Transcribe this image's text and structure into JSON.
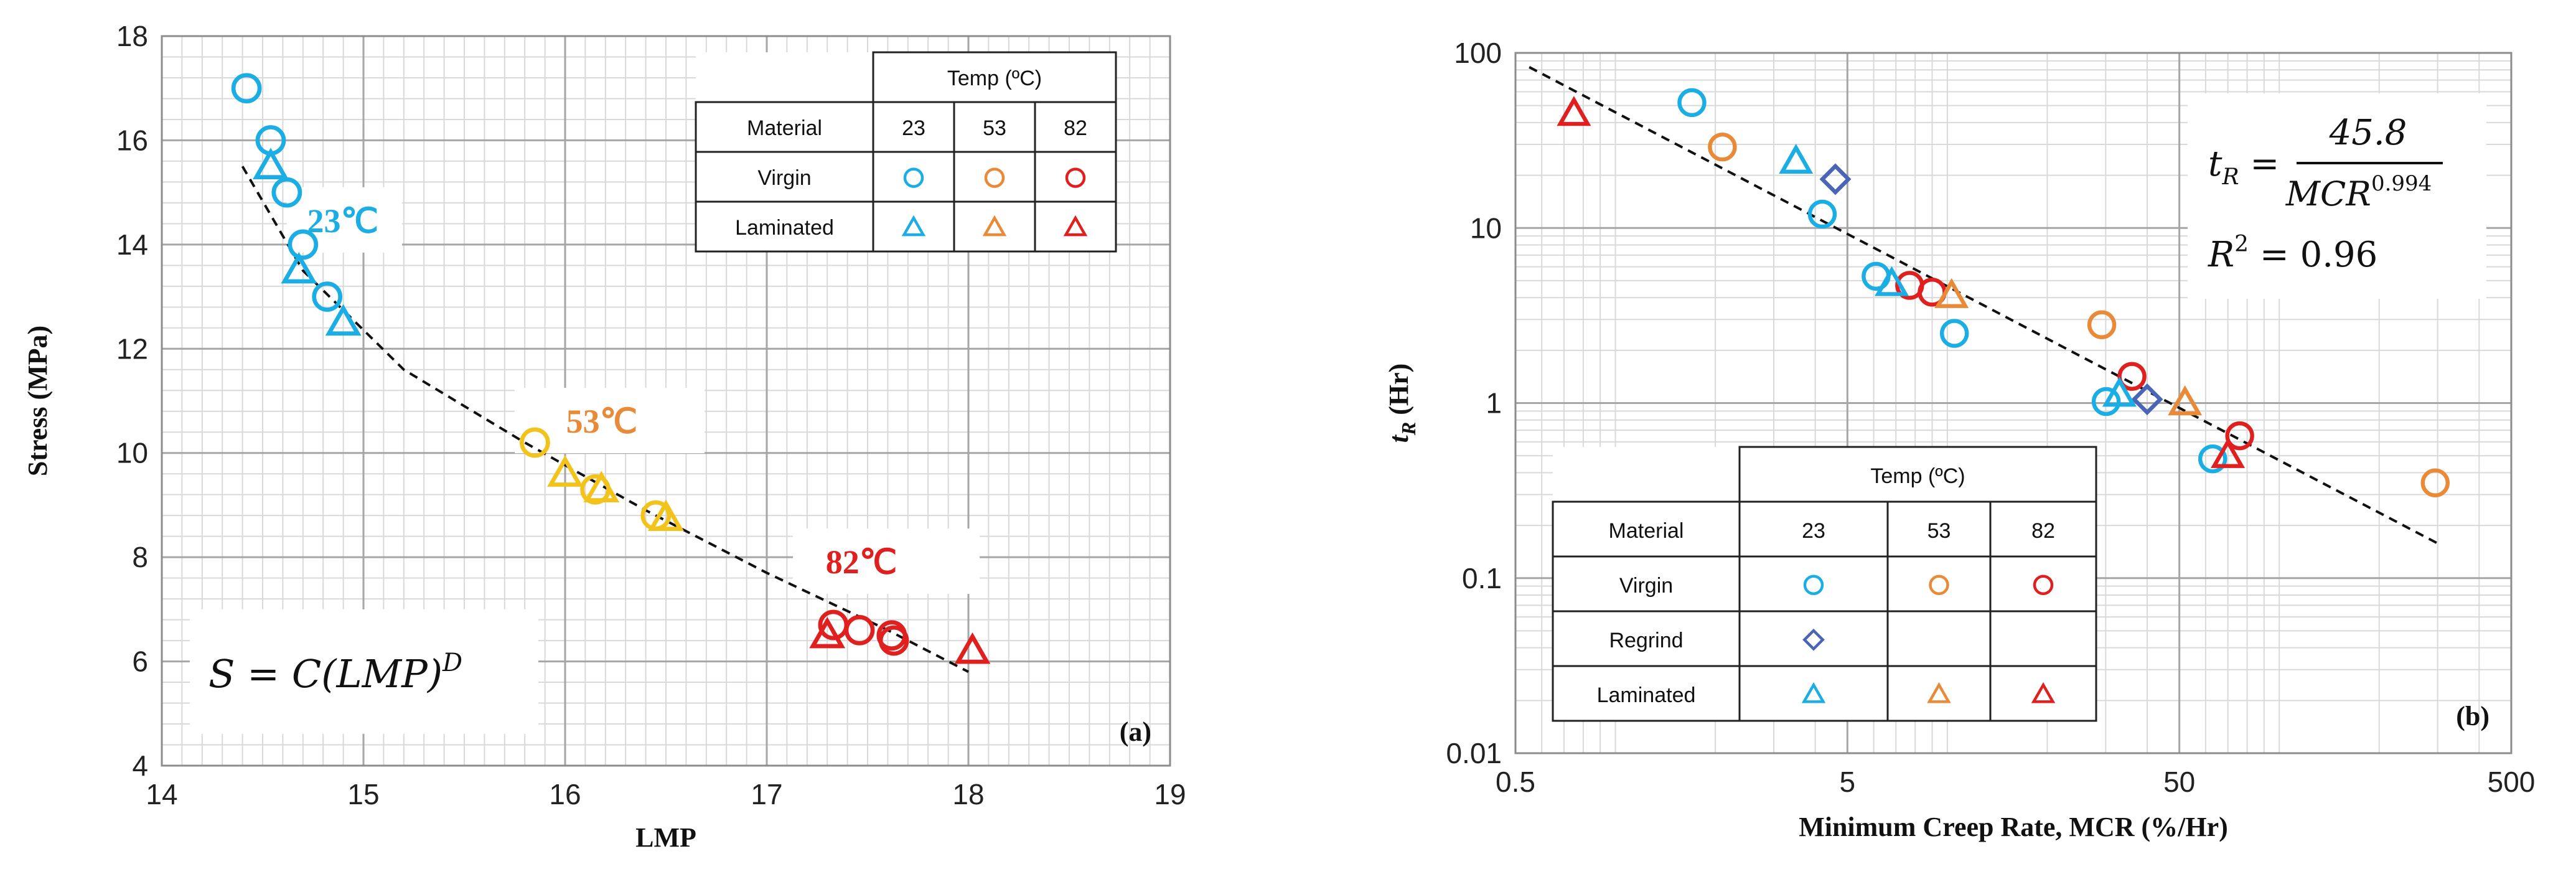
{
  "colors": {
    "c23": "#1aaee5",
    "c53": "#e98a38",
    "c53a": "#f2c31a",
    "c82": "#e01f1f",
    "regrind": "#4a65b5"
  },
  "chart_data": [
    {
      "type": "scatter",
      "panel_label": "(a)",
      "xlabel": "LMP",
      "ylabel": "Stress (MPa)",
      "xlim": [
        14,
        19
      ],
      "ylim": [
        4,
        18
      ],
      "xticks": [
        "14",
        "15",
        "16",
        "17",
        "18",
        "19"
      ],
      "yticks": [
        "4",
        "6",
        "8",
        "10",
        "12",
        "14",
        "16",
        "18"
      ],
      "annotations": {
        "t23": "23℃",
        "t53": "53℃",
        "t82": "82℃"
      },
      "equation": {
        "lhs": "S = C(LMP)",
        "exp": "D"
      },
      "fit_curve": [
        [
          14.4,
          15.5
        ],
        [
          14.7,
          13.5
        ],
        [
          15.2,
          11.6
        ],
        [
          15.8,
          10.2
        ],
        [
          16.4,
          8.9
        ],
        [
          17.0,
          7.7
        ],
        [
          17.6,
          6.6
        ],
        [
          18.0,
          5.8
        ]
      ],
      "series": [
        {
          "name": "Virgin 23",
          "marker": "circle",
          "color": "#1aaee5",
          "x": [
            14.42,
            14.54,
            14.62,
            14.7,
            14.82
          ],
          "y": [
            17,
            16,
            15,
            14,
            13
          ]
        },
        {
          "name": "Laminated 23",
          "marker": "triangle",
          "color": "#1aaee5",
          "x": [
            14.54,
            14.68,
            14.9
          ],
          "y": [
            15.5,
            13.5,
            12.5
          ]
        },
        {
          "name": "Virgin 53",
          "marker": "circle",
          "color": "#f2c31a",
          "x": [
            15.85,
            16.15,
            16.45
          ],
          "y": [
            10.2,
            9.3,
            8.8
          ]
        },
        {
          "name": "Laminated 53",
          "marker": "triangle",
          "color": "#f2c31a",
          "x": [
            16.0,
            16.18,
            16.5
          ],
          "y": [
            9.6,
            9.3,
            8.75
          ]
        },
        {
          "name": "Virgin 82",
          "marker": "circle",
          "color": "#e01f1f",
          "x": [
            17.33,
            17.46,
            17.62,
            17.63
          ],
          "y": [
            6.7,
            6.6,
            6.5,
            6.4
          ]
        },
        {
          "name": "Laminated 82",
          "marker": "triangle",
          "color": "#e01f1f",
          "x": [
            17.3,
            18.02
          ],
          "y": [
            6.5,
            6.2
          ]
        }
      ],
      "legend_table": {
        "title": "Temp (ºC)",
        "header": [
          "Material",
          "23",
          "53",
          "82"
        ],
        "rows": [
          {
            "label": "Virgin",
            "markers": [
              "circle",
              "circle",
              "circle"
            ],
            "colors": [
              "#1aaee5",
              "#e98a38",
              "#e01f1f"
            ]
          },
          {
            "label": "Laminated",
            "markers": [
              "triangle",
              "triangle",
              "triangle"
            ],
            "colors": [
              "#1aaee5",
              "#e98a38",
              "#e01f1f"
            ]
          }
        ]
      }
    },
    {
      "type": "scatter",
      "scale": "log-log",
      "panel_label": "(b)",
      "xlabel": "Minimum  Creep Rate, MCR (%/Hr)",
      "ylabel": "t_R (Hr)",
      "xlim": [
        0.5,
        500
      ],
      "ylim": [
        0.01,
        100
      ],
      "xticks": [
        {
          "v": 0.5,
          "t": "0.5"
        },
        {
          "v": 5,
          "t": "5"
        },
        {
          "v": 50,
          "t": "50"
        },
        {
          "v": 500,
          "t": "500"
        }
      ],
      "yticks": [
        {
          "v": 0.01,
          "t": "0.01"
        },
        {
          "v": 0.1,
          "t": "0.1"
        },
        {
          "v": 1,
          "t": "1"
        },
        {
          "v": 10,
          "t": "10"
        },
        {
          "v": 100,
          "t": "100"
        }
      ],
      "equation": {
        "lhs": "t",
        "sub": "R",
        "num": "45.8",
        "den": "MCR",
        "den_exp": "0.994",
        "r2_lhs": "R",
        "r2_exp": "2",
        "r2_rhs": "= 0.96"
      },
      "fit": {
        "coef": 45.8,
        "exp": 0.994,
        "x_range": [
          0.55,
          300
        ]
      },
      "series": [
        {
          "name": "Virgin 23",
          "marker": "circle",
          "color": "#1aaee5",
          "x": [
            1.7,
            4.2,
            6.1,
            10.5,
            30.1,
            63
          ],
          "y": [
            52,
            12,
            5.3,
            2.5,
            1.02,
            0.48
          ]
        },
        {
          "name": "Virgin 53",
          "marker": "circle",
          "color": "#e98a38",
          "x": [
            2.1,
            29.2,
            295
          ],
          "y": [
            29,
            2.8,
            0.35
          ]
        },
        {
          "name": "Virgin 82",
          "marker": "circle",
          "color": "#e01f1f",
          "x": [
            7.7,
            9.0,
            36,
            76
          ],
          "y": [
            4.7,
            4.3,
            1.42,
            0.65
          ]
        },
        {
          "name": "Regrind 23",
          "marker": "diamond",
          "color": "#4a65b5",
          "x": [
            4.6,
            40
          ],
          "y": [
            19,
            1.05
          ]
        },
        {
          "name": "Laminated 23",
          "marker": "triangle",
          "color": "#1aaee5",
          "x": [
            3.5,
            6.8,
            33
          ],
          "y": [
            24,
            4.8,
            1.12
          ]
        },
        {
          "name": "Laminated 53",
          "marker": "triangle",
          "color": "#e98a38",
          "x": [
            10.3,
            52
          ],
          "y": [
            4.1,
            1.0
          ]
        },
        {
          "name": "Laminated 82",
          "marker": "triangle",
          "color": "#e01f1f",
          "x": [
            0.75,
            70
          ],
          "y": [
            45,
            0.5
          ]
        }
      ],
      "legend_table": {
        "title": "Temp (ºC)",
        "header": [
          "Material",
          "23",
          "53",
          "82"
        ],
        "rows": [
          {
            "label": "Virgin",
            "markers": [
              "circle",
              "circle",
              "circle"
            ],
            "colors": [
              "#1aaee5",
              "#e98a38",
              "#e01f1f"
            ]
          },
          {
            "label": "Regrind",
            "markers": [
              "diamond",
              "",
              ""
            ],
            "colors": [
              "#4a65b5",
              "",
              ""
            ]
          },
          {
            "label": "Laminated",
            "markers": [
              "triangle",
              "triangle",
              "triangle"
            ],
            "colors": [
              "#1aaee5",
              "#e98a38",
              "#e01f1f"
            ]
          }
        ]
      }
    }
  ]
}
